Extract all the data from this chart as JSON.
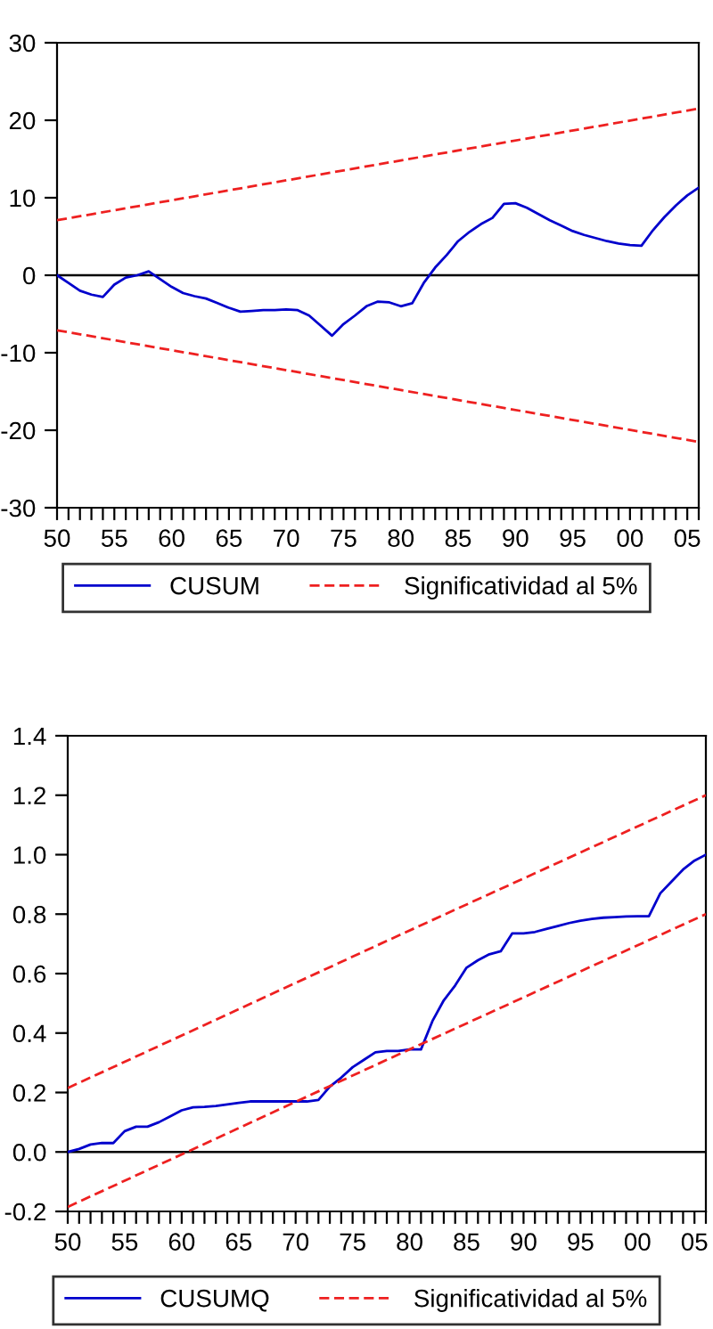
{
  "chart_data": [
    {
      "type": "line",
      "x": [
        1950,
        1951,
        1952,
        1953,
        1954,
        1955,
        1956,
        1957,
        1958,
        1959,
        1960,
        1961,
        1962,
        1963,
        1964,
        1965,
        1966,
        1967,
        1968,
        1969,
        1970,
        1971,
        1972,
        1973,
        1974,
        1975,
        1976,
        1977,
        1978,
        1979,
        1980,
        1981,
        1982,
        1983,
        1984,
        1985,
        1986,
        1987,
        1988,
        1989,
        1990,
        1991,
        1992,
        1993,
        1994,
        1995,
        1996,
        1997,
        1998,
        1999,
        2000,
        2001,
        2002,
        2003,
        2004,
        2005,
        2006
      ],
      "series": [
        {
          "name": "CUSUM",
          "color": "#0000cc",
          "line_style": "solid",
          "values": [
            0,
            -1,
            -2,
            -2.5,
            -2.8,
            -1.2,
            -0.3,
            0,
            0.5,
            -0.5,
            -1.5,
            -2.3,
            -2.7,
            -3.0,
            -3.6,
            -4.2,
            -4.7,
            -4.6,
            -4.5,
            -4.5,
            -4.4,
            -4.5,
            -5.2,
            -6.5,
            -7.8,
            -6.3,
            -5.2,
            -4,
            -3.4,
            -3.5,
            -4,
            -3.6,
            -1,
            1,
            2.6,
            4.4,
            5.6,
            6.6,
            7.4,
            9.2,
            9.3,
            8.7,
            7.9,
            7.1,
            6.4,
            5.7,
            5.2,
            4.8,
            4.4,
            4.1,
            3.9,
            3.8,
            5.8,
            7.5,
            9.0,
            10.3,
            11.3
          ]
        },
        {
          "name": "Significatividad al 5%",
          "color": "#ee2020",
          "line_style": "dashed",
          "x": [
            1950,
            1978,
            2006
          ],
          "values": [
            7.1,
            14.3,
            21.5
          ]
        },
        {
          "color": "#ee2020",
          "line_style": "dashed",
          "x": [
            1950,
            1978,
            2006
          ],
          "values": [
            -7.1,
            -14.3,
            -21.5
          ]
        }
      ],
      "xlim": [
        1950,
        2006
      ],
      "ylim": [
        -30,
        30
      ],
      "yticks": [
        -30,
        -20,
        -10,
        0,
        10,
        20,
        30
      ],
      "xticks": [
        {
          "value": 1950,
          "label": "50"
        },
        {
          "value": 1951,
          "label": null
        },
        {
          "value": 1952,
          "label": null
        },
        {
          "value": 1953,
          "label": null
        },
        {
          "value": 1954,
          "label": null
        },
        {
          "value": 1955,
          "label": "55"
        },
        {
          "value": 1956,
          "label": null
        },
        {
          "value": 1957,
          "label": null
        },
        {
          "value": 1958,
          "label": null
        },
        {
          "value": 1959,
          "label": null
        },
        {
          "value": 1960,
          "label": "60"
        },
        {
          "value": 1961,
          "label": null
        },
        {
          "value": 1962,
          "label": null
        },
        {
          "value": 1963,
          "label": null
        },
        {
          "value": 1964,
          "label": null
        },
        {
          "value": 1965,
          "label": "65"
        },
        {
          "value": 1966,
          "label": null
        },
        {
          "value": 1967,
          "label": null
        },
        {
          "value": 1968,
          "label": null
        },
        {
          "value": 1969,
          "label": null
        },
        {
          "value": 1970,
          "label": "70"
        },
        {
          "value": 1971,
          "label": null
        },
        {
          "value": 1972,
          "label": null
        },
        {
          "value": 1973,
          "label": null
        },
        {
          "value": 1974,
          "label": null
        },
        {
          "value": 1975,
          "label": "75"
        },
        {
          "value": 1976,
          "label": null
        },
        {
          "value": 1977,
          "label": null
        },
        {
          "value": 1978,
          "label": null
        },
        {
          "value": 1979,
          "label": null
        },
        {
          "value": 1980,
          "label": "80"
        },
        {
          "value": 1981,
          "label": null
        },
        {
          "value": 1982,
          "label": null
        },
        {
          "value": 1983,
          "label": null
        },
        {
          "value": 1984,
          "label": null
        },
        {
          "value": 1985,
          "label": "85"
        },
        {
          "value": 1986,
          "label": null
        },
        {
          "value": 1987,
          "label": null
        },
        {
          "value": 1988,
          "label": null
        },
        {
          "value": 1989,
          "label": null
        },
        {
          "value": 1990,
          "label": "90"
        },
        {
          "value": 1991,
          "label": null
        },
        {
          "value": 1992,
          "label": null
        },
        {
          "value": 1993,
          "label": null
        },
        {
          "value": 1994,
          "label": null
        },
        {
          "value": 1995,
          "label": "95"
        },
        {
          "value": 1996,
          "label": null
        },
        {
          "value": 1997,
          "label": null
        },
        {
          "value": 1998,
          "label": null
        },
        {
          "value": 1999,
          "label": null
        },
        {
          "value": 2000,
          "label": "00"
        },
        {
          "value": 2001,
          "label": null
        },
        {
          "value": 2002,
          "label": null
        },
        {
          "value": 2003,
          "label": null
        },
        {
          "value": 2004,
          "label": null
        },
        {
          "value": 2005,
          "label": "05"
        },
        {
          "value": 2006,
          "label": null
        }
      ],
      "ref_lines": [
        {
          "axis": "y",
          "value": 0,
          "color": "#000000"
        }
      ],
      "legend": "bottom",
      "grid": false
    },
    {
      "type": "line",
      "x": [
        1950,
        1951,
        1952,
        1953,
        1954,
        1955,
        1956,
        1957,
        1958,
        1959,
        1960,
        1961,
        1962,
        1963,
        1964,
        1965,
        1966,
        1967,
        1968,
        1969,
        1970,
        1971,
        1972,
        1973,
        1974,
        1975,
        1976,
        1977,
        1978,
        1979,
        1980,
        1981,
        1982,
        1983,
        1984,
        1985,
        1986,
        1987,
        1988,
        1989,
        1990,
        1991,
        1992,
        1993,
        1994,
        1995,
        1996,
        1997,
        1998,
        1999,
        2000,
        2001,
        2002,
        2003,
        2004,
        2005,
        2006
      ],
      "series": [
        {
          "name": "CUSUMQ",
          "color": "#0000cc",
          "line_style": "solid",
          "values": [
            0,
            0.01,
            0.025,
            0.03,
            0.03,
            0.07,
            0.085,
            0.085,
            0.1,
            0.12,
            0.14,
            0.15,
            0.152,
            0.155,
            0.16,
            0.165,
            0.17,
            0.17,
            0.17,
            0.17,
            0.17,
            0.17,
            0.175,
            0.22,
            0.25,
            0.285,
            0.31,
            0.335,
            0.34,
            0.34,
            0.345,
            0.345,
            0.44,
            0.51,
            0.56,
            0.62,
            0.645,
            0.665,
            0.675,
            0.735,
            0.735,
            0.74,
            0.75,
            0.76,
            0.77,
            0.778,
            0.784,
            0.788,
            0.79,
            0.792,
            0.793,
            0.793,
            0.87,
            0.91,
            0.95,
            0.98,
            1.0
          ]
        },
        {
          "name": "Significatividad al 5%",
          "color": "#ee2020",
          "line_style": "dashed",
          "x": [
            1950,
            1978,
            2006
          ],
          "values": [
            0.215,
            0.71,
            1.2
          ]
        },
        {
          "color": "#ee2020",
          "line_style": "dashed",
          "x": [
            1950,
            1978,
            2006
          ],
          "values": [
            -0.185,
            0.31,
            0.8
          ]
        }
      ],
      "xlim": [
        1950,
        2006
      ],
      "ylim": [
        -0.2,
        1.4
      ],
      "yticks": [
        {
          "value": -0.2,
          "label": "-0.2"
        },
        {
          "value": 0,
          "label": "0.0"
        },
        {
          "value": 0.2,
          "label": "0.2"
        },
        {
          "value": 0.4,
          "label": "0.4"
        },
        {
          "value": 0.6,
          "label": "0.6"
        },
        {
          "value": 0.8,
          "label": "0.8"
        },
        {
          "value": 1.0,
          "label": "1.0"
        },
        {
          "value": 1.2,
          "label": "1.2"
        },
        {
          "value": 1.4,
          "label": "1.4"
        }
      ],
      "xticks": [
        {
          "value": 1950,
          "label": "50"
        },
        {
          "value": 1951,
          "label": null
        },
        {
          "value": 1952,
          "label": null
        },
        {
          "value": 1953,
          "label": null
        },
        {
          "value": 1954,
          "label": null
        },
        {
          "value": 1955,
          "label": "55"
        },
        {
          "value": 1956,
          "label": null
        },
        {
          "value": 1957,
          "label": null
        },
        {
          "value": 1958,
          "label": null
        },
        {
          "value": 1959,
          "label": null
        },
        {
          "value": 1960,
          "label": "60"
        },
        {
          "value": 1961,
          "label": null
        },
        {
          "value": 1962,
          "label": null
        },
        {
          "value": 1963,
          "label": null
        },
        {
          "value": 1964,
          "label": null
        },
        {
          "value": 1965,
          "label": "65"
        },
        {
          "value": 1966,
          "label": null
        },
        {
          "value": 1967,
          "label": null
        },
        {
          "value": 1968,
          "label": null
        },
        {
          "value": 1969,
          "label": null
        },
        {
          "value": 1970,
          "label": "70"
        },
        {
          "value": 1971,
          "label": null
        },
        {
          "value": 1972,
          "label": null
        },
        {
          "value": 1973,
          "label": null
        },
        {
          "value": 1974,
          "label": null
        },
        {
          "value": 1975,
          "label": "75"
        },
        {
          "value": 1976,
          "label": null
        },
        {
          "value": 1977,
          "label": null
        },
        {
          "value": 1978,
          "label": null
        },
        {
          "value": 1979,
          "label": null
        },
        {
          "value": 1980,
          "label": "80"
        },
        {
          "value": 1981,
          "label": null
        },
        {
          "value": 1982,
          "label": null
        },
        {
          "value": 1983,
          "label": null
        },
        {
          "value": 1984,
          "label": null
        },
        {
          "value": 1985,
          "label": "85"
        },
        {
          "value": 1986,
          "label": null
        },
        {
          "value": 1987,
          "label": null
        },
        {
          "value": 1988,
          "label": null
        },
        {
          "value": 1989,
          "label": null
        },
        {
          "value": 1990,
          "label": "90"
        },
        {
          "value": 1991,
          "label": null
        },
        {
          "value": 1992,
          "label": null
        },
        {
          "value": 1993,
          "label": null
        },
        {
          "value": 1994,
          "label": null
        },
        {
          "value": 1995,
          "label": "95"
        },
        {
          "value": 1996,
          "label": null
        },
        {
          "value": 1997,
          "label": null
        },
        {
          "value": 1998,
          "label": null
        },
        {
          "value": 1999,
          "label": null
        },
        {
          "value": 2000,
          "label": "00"
        },
        {
          "value": 2001,
          "label": null
        },
        {
          "value": 2002,
          "label": null
        },
        {
          "value": 2003,
          "label": null
        },
        {
          "value": 2004,
          "label": null
        },
        {
          "value": 2005,
          "label": "05"
        },
        {
          "value": 2006,
          "label": null
        }
      ],
      "ref_lines": [
        {
          "axis": "y",
          "value": 0,
          "color": "#000000"
        }
      ],
      "legend": "bottom",
      "grid": false
    }
  ]
}
